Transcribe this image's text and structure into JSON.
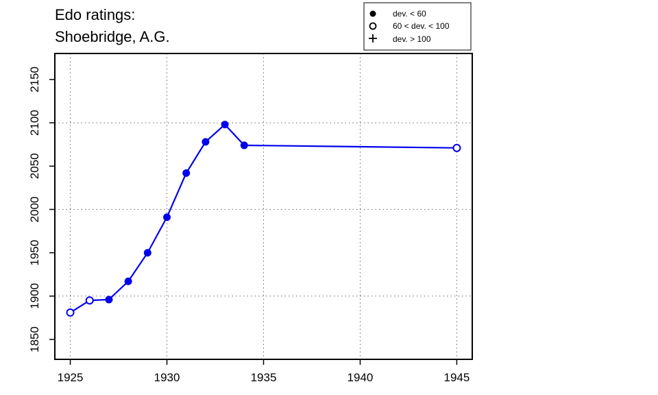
{
  "chart_data": {
    "type": "line",
    "title": "Edo ratings:",
    "subtitle": "Shoebridge, A.G.",
    "xlabel": "",
    "ylabel": "",
    "xlim": [
      1924.2,
      1945.8
    ],
    "ylim": [
      1827,
      2180
    ],
    "x_ticks": [
      "1925",
      "1930",
      "1935",
      "1940",
      "1945"
    ],
    "y_ticks": [
      "1850",
      "1900",
      "1950",
      "2000",
      "2050",
      "2100",
      "2150"
    ],
    "grid": "dotted, at 1925/1930/1935/1940/1945 and 1900/2000/2100",
    "legend_position": "top-right",
    "legend": [
      {
        "marker": "filled-circle",
        "label": "dev. < 60"
      },
      {
        "marker": "open-circle",
        "label": "60 < dev. < 100"
      },
      {
        "marker": "plus",
        "label": "dev. > 100"
      }
    ],
    "line_color": "#0000ee",
    "series": [
      {
        "points": [
          {
            "x": 1925,
            "y": 1881,
            "marker": "open-circle"
          },
          {
            "x": 1926,
            "y": 1895,
            "marker": "open-circle"
          },
          {
            "x": 1927,
            "y": 1896,
            "marker": "filled-circle"
          },
          {
            "x": 1928,
            "y": 1917,
            "marker": "filled-circle"
          },
          {
            "x": 1929,
            "y": 1950,
            "marker": "filled-circle"
          },
          {
            "x": 1930,
            "y": 1991,
            "marker": "filled-circle"
          },
          {
            "x": 1931,
            "y": 2042,
            "marker": "filled-circle"
          },
          {
            "x": 1932,
            "y": 2078,
            "marker": "filled-circle"
          },
          {
            "x": 1933,
            "y": 2098,
            "marker": "filled-circle"
          },
          {
            "x": 1934,
            "y": 2074,
            "marker": "filled-circle"
          },
          {
            "x": 1945,
            "y": 2071,
            "marker": "open-circle"
          }
        ]
      }
    ]
  }
}
